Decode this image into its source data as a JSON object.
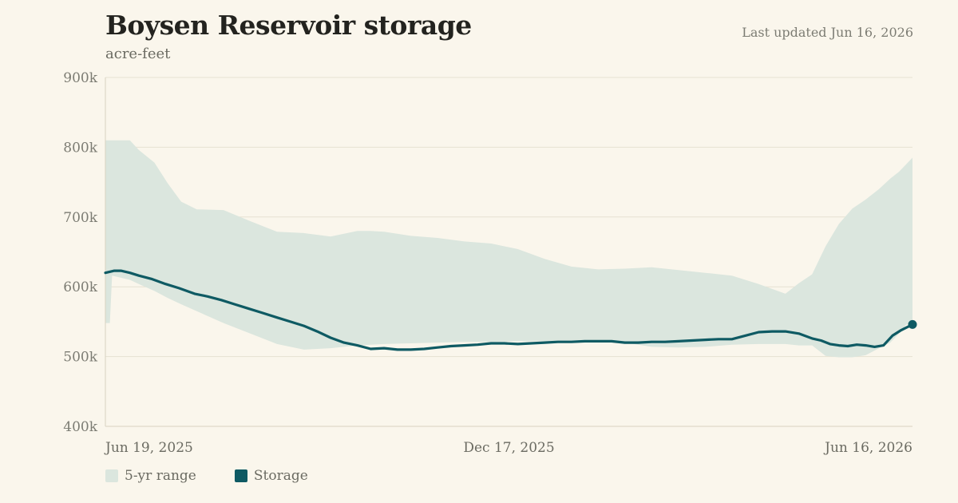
{
  "header": {
    "title": "Boysen Reservoir storage",
    "subtitle": "acre-feet",
    "updated": "Last updated Jun 16, 2026"
  },
  "legend": [
    {
      "label": "5-yr range",
      "color": "#dbe6de"
    },
    {
      "label": "Storage",
      "color": "#0e5a63"
    }
  ],
  "chart_data": {
    "type": "area",
    "title": "Boysen Reservoir storage",
    "subtitle": "acre-feet",
    "ylabel": "",
    "xlabel": "",
    "ylim": [
      400000,
      900000
    ],
    "yticks": [
      {
        "value": 400000,
        "label": "400k"
      },
      {
        "value": 500000,
        "label": "500k"
      },
      {
        "value": 600000,
        "label": "600k"
      },
      {
        "value": 700000,
        "label": "700k"
      },
      {
        "value": 800000,
        "label": "800k"
      },
      {
        "value": 900000,
        "label": "900k"
      }
    ],
    "xlim": [
      "2025-06-19",
      "2026-06-16"
    ],
    "xticks": [
      {
        "value": "2025-06-19",
        "label": "Jun 19, 2025"
      },
      {
        "value": "2025-12-17",
        "label": "Dec 17, 2025"
      },
      {
        "value": "2026-06-16",
        "label": "Jun 16, 2026"
      }
    ],
    "grid": true,
    "legend_position": "bottom-left",
    "series": [
      {
        "name": "5-yr range",
        "type": "band",
        "color": "#dbe6de",
        "x": [
          "2025-06-19",
          "2025-06-21",
          "2025-06-22",
          "2025-06-30",
          "2025-07-04",
          "2025-07-11",
          "2025-07-17",
          "2025-07-23",
          "2025-07-30",
          "2025-08-11",
          "2025-08-23",
          "2025-09-04",
          "2025-09-16",
          "2025-09-28",
          "2025-10-10",
          "2025-10-16",
          "2025-10-22",
          "2025-11-03",
          "2025-11-15",
          "2025-11-27",
          "2025-12-09",
          "2025-12-21",
          "2026-01-02",
          "2026-01-14",
          "2026-01-26",
          "2026-02-07",
          "2026-02-19",
          "2026-03-03",
          "2026-03-15",
          "2026-03-27",
          "2026-04-08",
          "2026-04-20",
          "2026-04-26",
          "2026-05-02",
          "2026-05-08",
          "2026-05-14",
          "2026-05-20",
          "2026-05-26",
          "2026-06-01",
          "2026-06-06",
          "2026-06-10",
          "2026-06-13",
          "2026-06-16"
        ],
        "low": [
          548000,
          548000,
          616000,
          610000,
          604000,
          594000,
          584000,
          575000,
          565000,
          548000,
          533000,
          518000,
          510000,
          512000,
          516000,
          517000,
          518000,
          519000,
          520000,
          521000,
          521000,
          522000,
          522000,
          522000,
          521000,
          520000,
          514000,
          513000,
          514000,
          517000,
          518000,
          518000,
          516000,
          516000,
          501000,
          499000,
          499000,
          502000,
          512000,
          520000,
          533000,
          545000,
          550000
        ],
        "high": [
          810000,
          810000,
          810000,
          810000,
          796000,
          778000,
          748000,
          722000,
          711000,
          710000,
          694000,
          679000,
          677000,
          672000,
          680000,
          680000,
          679000,
          673000,
          670000,
          665000,
          662000,
          654000,
          640000,
          629000,
          625000,
          626000,
          628000,
          624000,
          620000,
          616000,
          604000,
          590000,
          605000,
          618000,
          658000,
          690000,
          712000,
          725000,
          740000,
          755000,
          765000,
          775000,
          785000
        ]
      },
      {
        "name": "Storage",
        "type": "line",
        "color": "#0e5a63",
        "x": [
          "2025-06-19",
          "2025-06-23",
          "2025-06-26",
          "2025-06-30",
          "2025-07-04",
          "2025-07-10",
          "2025-07-16",
          "2025-07-22",
          "2025-07-29",
          "2025-08-04",
          "2025-08-10",
          "2025-08-16",
          "2025-08-22",
          "2025-08-28",
          "2025-09-04",
          "2025-09-10",
          "2025-09-16",
          "2025-09-22",
          "2025-09-28",
          "2025-10-04",
          "2025-10-10",
          "2025-10-16",
          "2025-10-22",
          "2025-10-28",
          "2025-11-03",
          "2025-11-09",
          "2025-11-15",
          "2025-11-21",
          "2025-11-27",
          "2025-12-03",
          "2025-12-09",
          "2025-12-15",
          "2025-12-21",
          "2025-12-27",
          "2026-01-02",
          "2026-01-08",
          "2026-01-14",
          "2026-01-20",
          "2026-01-26",
          "2026-02-01",
          "2026-02-07",
          "2026-02-13",
          "2026-02-19",
          "2026-02-25",
          "2026-03-03",
          "2026-03-09",
          "2026-03-15",
          "2026-03-21",
          "2026-03-27",
          "2026-04-02",
          "2026-04-08",
          "2026-04-14",
          "2026-04-20",
          "2026-04-26",
          "2026-05-02",
          "2026-05-06",
          "2026-05-10",
          "2026-05-14",
          "2026-05-18",
          "2026-05-22",
          "2026-05-26",
          "2026-05-30",
          "2026-06-03",
          "2026-06-07",
          "2026-06-11",
          "2026-06-16"
        ],
        "values": [
          620000,
          623000,
          623000,
          620000,
          616000,
          611000,
          604000,
          598000,
          590000,
          586000,
          581000,
          575000,
          569000,
          563000,
          556000,
          550000,
          544000,
          536000,
          527000,
          520000,
          516000,
          511000,
          512000,
          510000,
          510000,
          511000,
          513000,
          515000,
          516000,
          517000,
          519000,
          519000,
          518000,
          519000,
          520000,
          521000,
          521000,
          522000,
          522000,
          522000,
          520000,
          520000,
          521000,
          521000,
          522000,
          523000,
          524000,
          525000,
          525000,
          530000,
          535000,
          536000,
          536000,
          533000,
          526000,
          523000,
          518000,
          516000,
          515000,
          517000,
          516000,
          514000,
          516000,
          530000,
          538000,
          546000
        ]
      }
    ]
  }
}
